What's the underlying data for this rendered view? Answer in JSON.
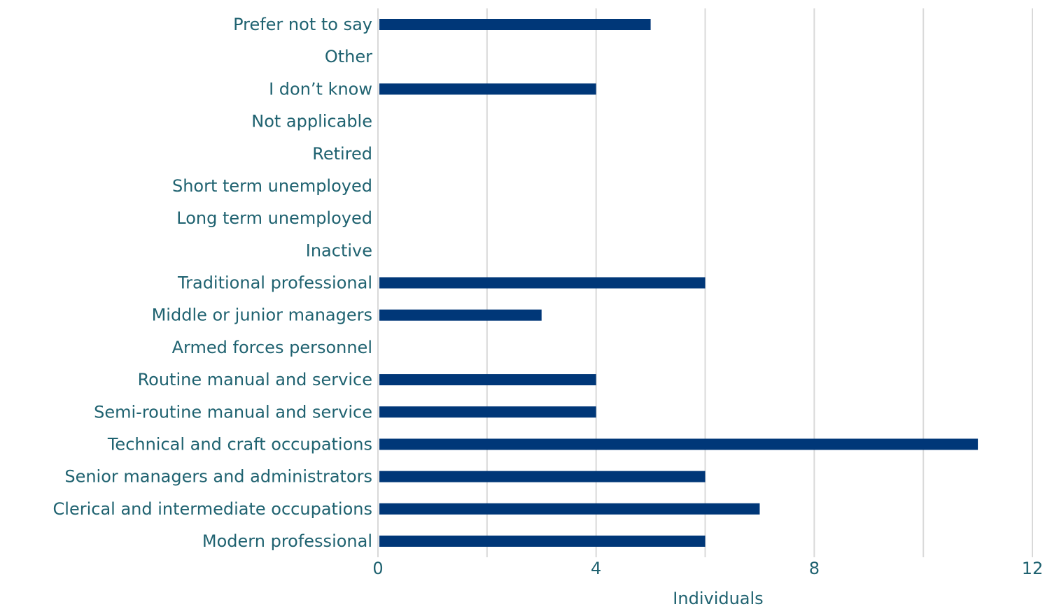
{
  "chart_data": {
    "type": "bar",
    "orientation": "horizontal",
    "categories": [
      "Prefer not to say",
      "Other",
      "I don’t know",
      "Not applicable",
      "Retired",
      "Short term unemployed",
      "Long term unemployed",
      "Inactive",
      "Traditional professional",
      "Middle or junior managers",
      "Armed forces personnel",
      "Routine manual and service",
      "Semi-routine manual and service",
      "Technical and craft occupations",
      "Senior managers and administrators",
      "Clerical and intermediate occupations",
      "Modern professional"
    ],
    "values": [
      5,
      0,
      4,
      0,
      0,
      0,
      0,
      0,
      6,
      3,
      0,
      4,
      4,
      11,
      6,
      7,
      6
    ],
    "title": "",
    "xlabel": "Individuals",
    "ylabel": "",
    "xlim": [
      0,
      12
    ],
    "x_ticks": [
      0,
      4,
      8,
      12
    ],
    "x_tick_labels": [
      "0",
      "4",
      "8",
      "12"
    ],
    "gridlines": [
      0,
      2,
      4,
      6,
      8,
      10,
      12
    ],
    "grid": true,
    "legend": "none",
    "bar_color": "#003778",
    "grid_color": "#d9d9d9",
    "text_color": "#1f6270"
  }
}
